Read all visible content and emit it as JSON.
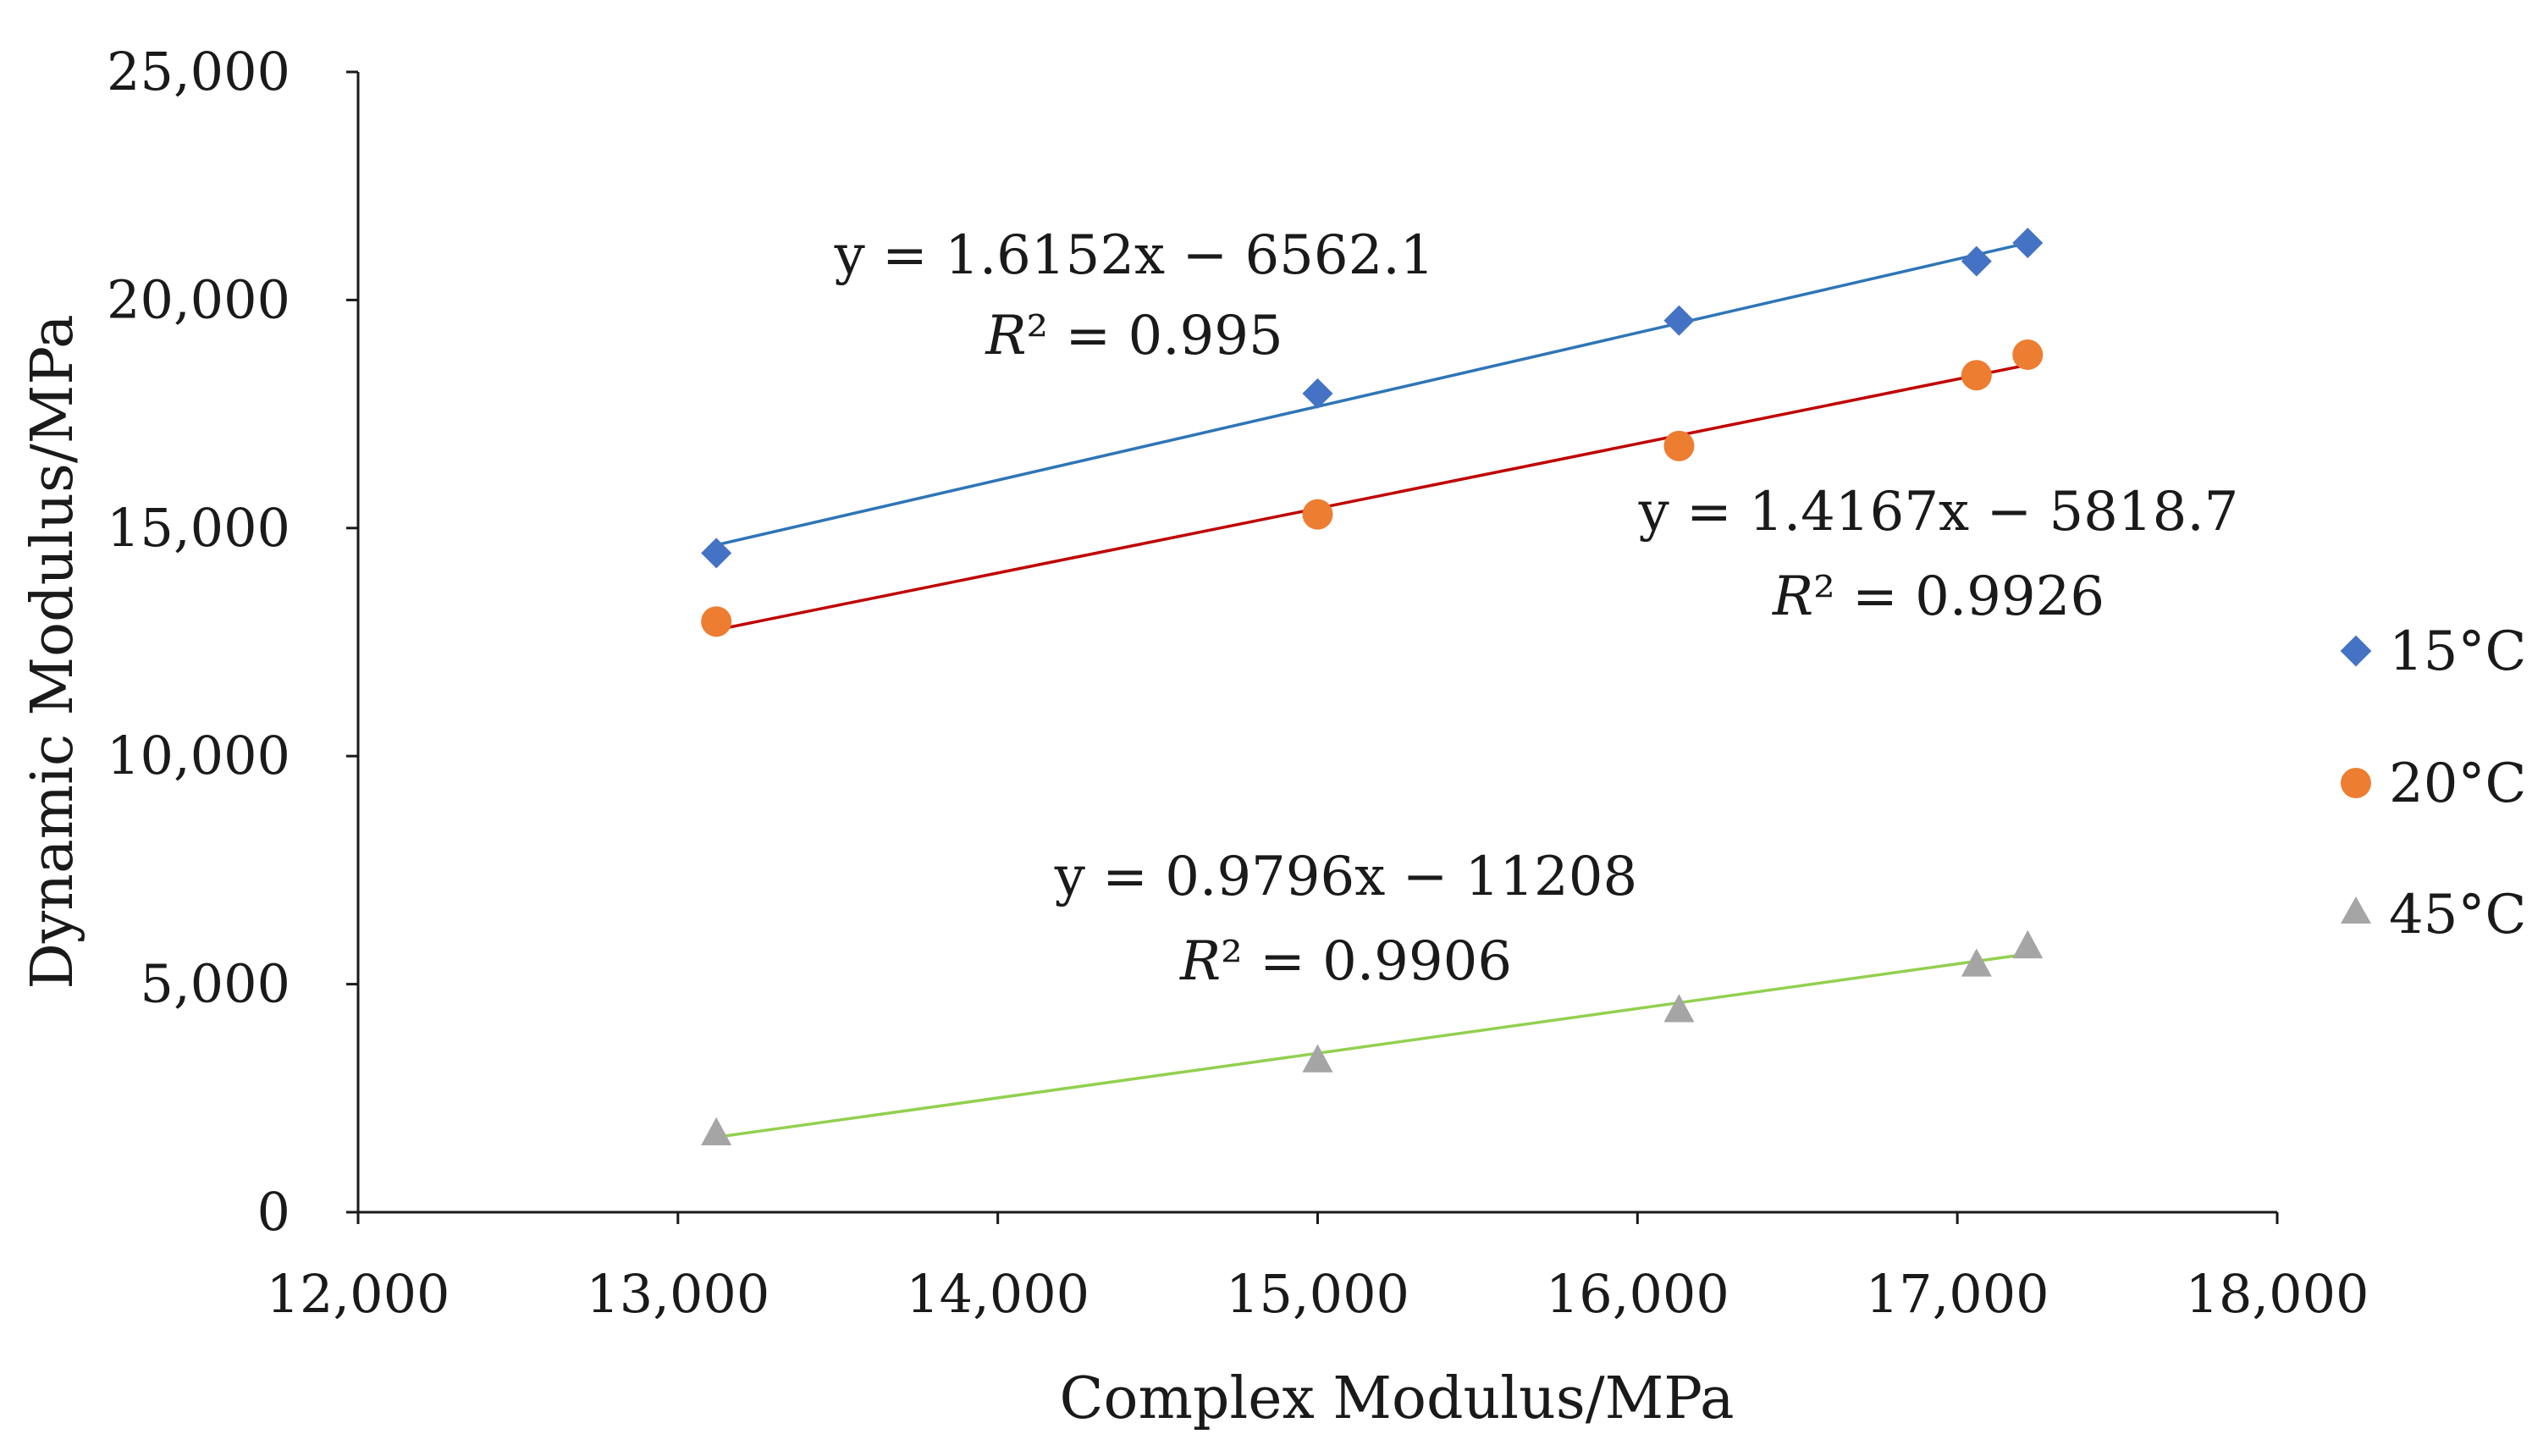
{
  "chart_data": {
    "type": "scatter",
    "title": "",
    "xlabel": "Complex Modulus/MPa",
    "ylabel": "Dynamic Modulus/MPa",
    "xlim": [
      12000,
      18000
    ],
    "ylim": [
      0,
      25000
    ],
    "x_ticks": [
      12000,
      13000,
      14000,
      15000,
      16000,
      17000,
      18000
    ],
    "x_tick_labels": [
      "12,000",
      "13,000",
      "14,000",
      "15,000",
      "16,000",
      "17,000",
      "18,000"
    ],
    "y_ticks": [
      0,
      5000,
      10000,
      15000,
      20000,
      25000
    ],
    "y_tick_labels": [
      "0",
      "5,000",
      "10,000",
      "15,000",
      "20,000",
      "25,000"
    ],
    "grid": false,
    "legend_position": "right",
    "x": [
      13120,
      15000,
      16130,
      17060,
      17220
    ],
    "series": [
      {
        "name": "15°C",
        "marker": "diamond",
        "color": "#4472C4",
        "trend_color": "#2E75B6",
        "values": [
          14450,
          17950,
          19550,
          20850,
          21250
        ],
        "trend": {
          "slope": 1.6152,
          "intercept": -6562.1
        },
        "equation": "y = 1.6152x − 6562.1",
        "r2_label": "R",
        "r2_value": "² = 0.995"
      },
      {
        "name": "20°C",
        "marker": "circle",
        "color": "#ED7D31",
        "trend_color": "#C00000",
        "values": [
          12950,
          15300,
          16800,
          18350,
          18800
        ],
        "trend": {
          "slope": 1.4167,
          "intercept": -5818.7
        },
        "equation": "y = 1.4167x − 5818.7",
        "r2_label": "R",
        "r2_value": "² = 0.9926"
      },
      {
        "name": "45°C",
        "marker": "triangle",
        "color": "#A5A5A5",
        "trend_color": "#92D050",
        "values": [
          1750,
          3350,
          4450,
          5450,
          5850
        ],
        "trend": {
          "slope": 0.9796,
          "intercept": -11208
        },
        "equation": "y = 0.9796x − 11208",
        "r2_label": "R",
        "r2_value": "² = 0.9906"
      }
    ]
  }
}
